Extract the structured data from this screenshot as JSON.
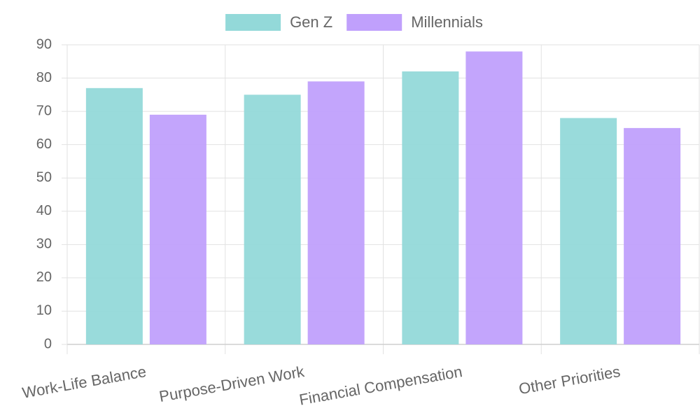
{
  "chart_data": {
    "type": "bar",
    "categories": [
      "Work-Life Balance",
      "Purpose-Driven Work",
      "Financial Compensation",
      "Other Priorities"
    ],
    "series": [
      {
        "name": "Gen Z",
        "color": "#93d9d9",
        "values": [
          77,
          75,
          82,
          68
        ]
      },
      {
        "name": "Millennials",
        "color": "#c0a0fc",
        "values": [
          69,
          79,
          88,
          65
        ]
      }
    ],
    "ylim": [
      0,
      90
    ],
    "yticks": [
      0,
      10,
      20,
      30,
      40,
      50,
      60,
      70,
      80,
      90
    ],
    "grid": true,
    "legend": "top"
  }
}
